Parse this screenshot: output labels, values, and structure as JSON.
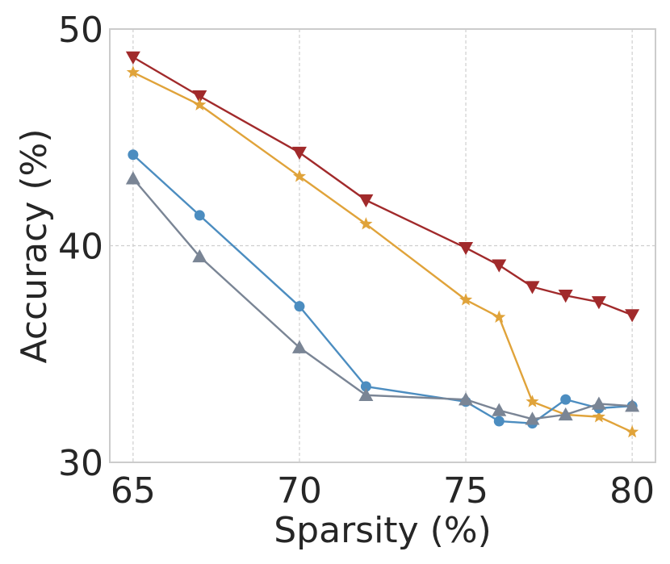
{
  "chart_data": {
    "type": "line",
    "title": "",
    "xlabel": "Sparsity (%)",
    "ylabel": "Accuracy (%)",
    "xlim": [
      64.3,
      80.7
    ],
    "ylim": [
      30,
      50
    ],
    "xticks": [
      65,
      70,
      75,
      80
    ],
    "yticks": [
      30,
      40,
      50
    ],
    "grid": true,
    "legend": "none",
    "series": [
      {
        "name": "series-red-triangle-down",
        "color": "#A12A2B",
        "marker": "triangle-down",
        "x": [
          65,
          67,
          70,
          72,
          75,
          76,
          77,
          78,
          79,
          80
        ],
        "y": [
          48.7,
          46.9,
          44.3,
          42.1,
          39.9,
          39.1,
          38.1,
          37.7,
          37.4,
          36.8
        ]
      },
      {
        "name": "series-orange-star",
        "color": "#E0A33A",
        "marker": "star",
        "x": [
          65,
          67,
          70,
          72,
          75,
          76,
          77,
          78,
          79,
          80
        ],
        "y": [
          48.0,
          46.5,
          43.2,
          41.0,
          37.5,
          36.7,
          32.8,
          32.2,
          32.1,
          31.4
        ]
      },
      {
        "name": "series-blue-circle",
        "color": "#4C8DC0",
        "marker": "circle",
        "x": [
          65,
          67,
          70,
          72,
          75,
          76,
          77,
          78,
          79,
          80
        ],
        "y": [
          44.2,
          41.4,
          37.2,
          33.5,
          32.8,
          31.9,
          31.8,
          32.9,
          32.5,
          32.6
        ]
      },
      {
        "name": "series-gray-triangle-up",
        "color": "#7A8595",
        "marker": "triangle-up",
        "x": [
          65,
          67,
          70,
          72,
          75,
          76,
          77,
          78,
          79,
          80
        ],
        "y": [
          43.1,
          39.5,
          35.3,
          33.1,
          32.9,
          32.4,
          32.0,
          32.2,
          32.7,
          32.6
        ]
      }
    ]
  }
}
